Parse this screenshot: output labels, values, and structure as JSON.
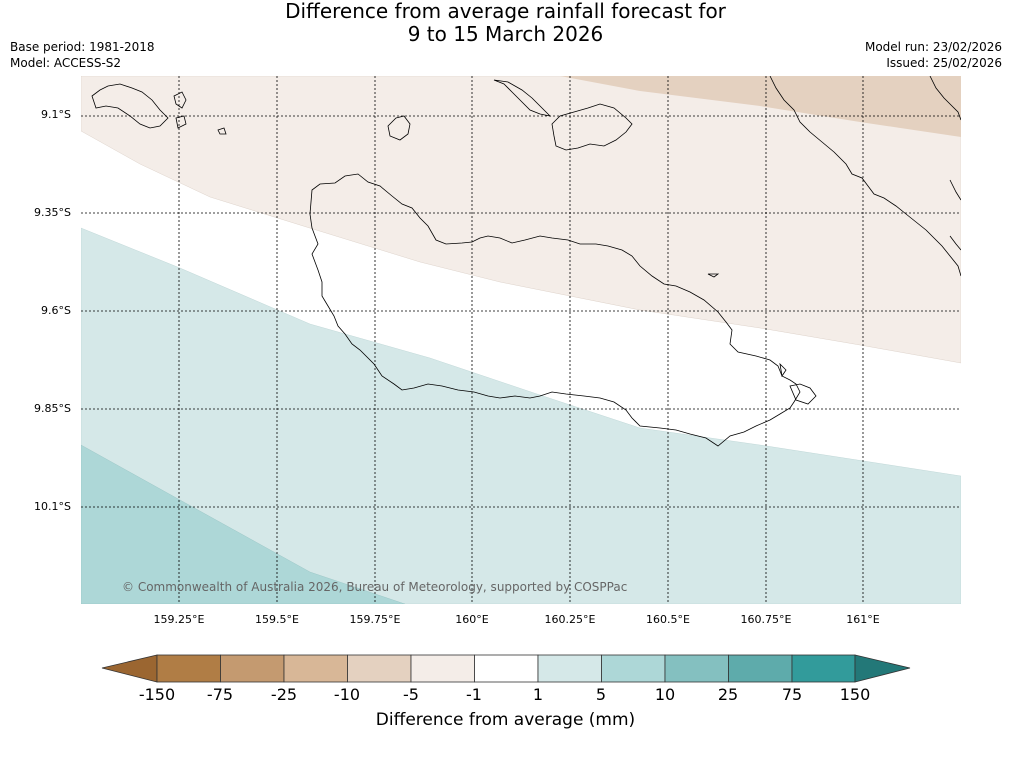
{
  "title": {
    "line1": "Difference from average rainfall forecast for",
    "line2": "9 to 15 March 2026"
  },
  "meta": {
    "base_period": "Base period: 1981-2018",
    "model": "Model: ACCESS-S2",
    "model_run": "Model run: 23/02/2026",
    "issued": "Issued: 25/02/2026"
  },
  "map": {
    "latitudes": [
      "9.1°S",
      "9.35°S",
      "9.6°S",
      "9.85°S",
      "10.1°S"
    ],
    "longitudes": [
      "159.25°E",
      "159.5°E",
      "159.75°E",
      "160°E",
      "160.25°E",
      "160.5°E",
      "160.75°E",
      "161°E"
    ],
    "copyright": "© Commonwealth of Australia 2026, Bureau of Meteorology, supported by COSPPac"
  },
  "colorbar": {
    "title": "Difference from average (mm)",
    "ticks": [
      "-150",
      "-75",
      "-25",
      "-10",
      "-5",
      "-1",
      "1",
      "5",
      "10",
      "25",
      "75",
      "150"
    ],
    "colors": [
      "#9b6631",
      "#b07d45",
      "#c49a70",
      "#d8b797",
      "#e4d1c0",
      "#f4ede8",
      "#ffffff",
      "#d5e8e8",
      "#add7d7",
      "#84c0c0",
      "#5eabab",
      "#329b9b",
      "#237878"
    ]
  }
}
